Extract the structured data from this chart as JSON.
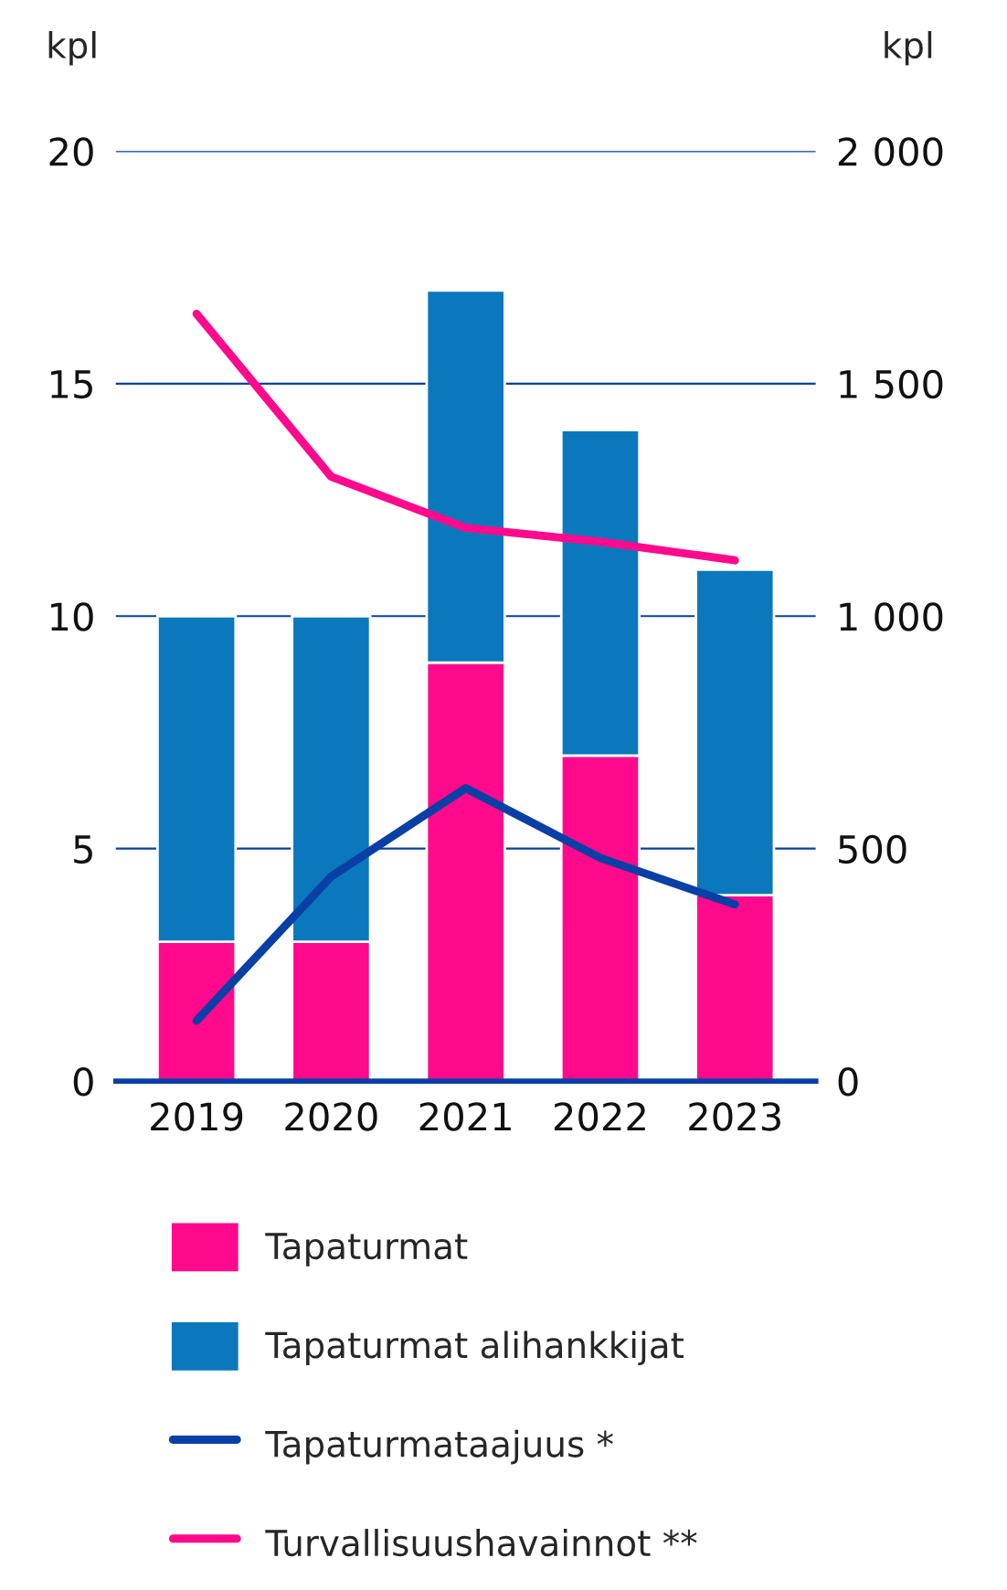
{
  "chart_data": {
    "type": "bar",
    "stacked": true,
    "categories": [
      "2019",
      "2020",
      "2021",
      "2022",
      "2023"
    ],
    "ylabel": "kpl",
    "y2label": "kpl",
    "series": [
      {
        "name": "Tapaturmat",
        "color": "#ff0a8c",
        "values": [
          3,
          3,
          9,
          7,
          4
        ]
      },
      {
        "name": "Tapaturmat alihankkijat",
        "color": "#0b78bd",
        "values": [
          7,
          7,
          8,
          7,
          7
        ]
      },
      {
        "name": "Tapaturmataajuus *",
        "type": "line",
        "color": "#0a3fa5",
        "values": [
          1.3,
          4.4,
          6.3,
          4.8,
          3.8
        ]
      },
      {
        "name": "Turvallisuushavainnot **",
        "type": "line",
        "axis": "y2",
        "color": "#ff0a8c",
        "values": [
          1650,
          1300,
          1190,
          1160,
          1120
        ]
      }
    ],
    "ylim": [
      0,
      20
    ],
    "yticks": [
      0,
      5,
      10,
      15,
      20
    ],
    "y2lim": [
      0,
      2000
    ],
    "y2ticks": [
      0,
      {
        "value": 500,
        "label": "500"
      },
      {
        "value": 1000,
        "label": "1 000"
      },
      {
        "value": 1500,
        "label": "1 500"
      },
      {
        "value": 2000,
        "label": "2 000"
      }
    ],
    "grid": "y",
    "legend": "bottom",
    "marker": "none",
    "line_style": "solid"
  }
}
